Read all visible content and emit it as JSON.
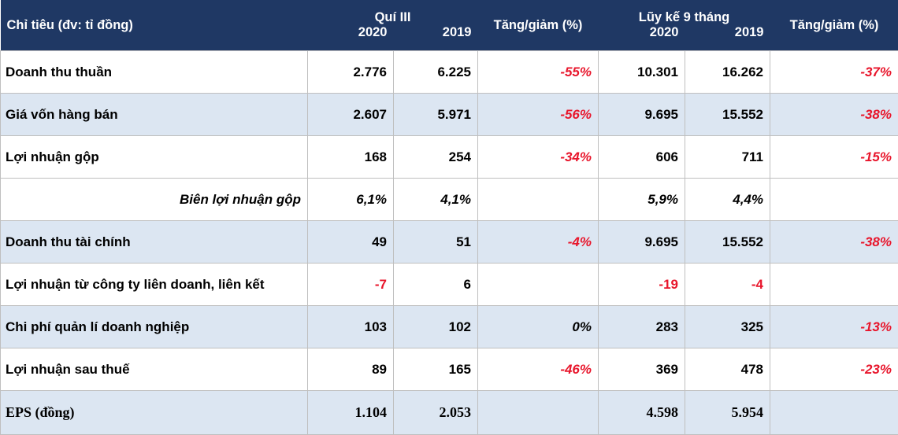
{
  "header": {
    "indicator": "Chỉ tiêu (đv: tỉ đồng)",
    "q3": "Quí III",
    "ytd": "Lũy kế 9 tháng",
    "year_a": "2020",
    "year_b": "2019",
    "change": "Tăng/giảm (%)"
  },
  "rows": [
    {
      "label": "Doanh thu thuần",
      "q2020": "2.776",
      "q2019": "6.225",
      "qchg": "-55%",
      "y2020": "10.301",
      "y2019": "16.262",
      "ychg": "-37%"
    },
    {
      "label": "Giá vốn hàng bán",
      "q2020": "2.607",
      "q2019": "5.971",
      "qchg": "-56%",
      "y2020": "9.695",
      "y2019": "15.552",
      "ychg": "-38%"
    },
    {
      "label": "Lợi nhuận gộp",
      "q2020": "168",
      "q2019": "254",
      "qchg": "-34%",
      "y2020": "606",
      "y2019": "711",
      "ychg": "-15%"
    },
    {
      "label": "Biên lợi nhuận gộp",
      "q2020": "6,1%",
      "q2019": "4,1%",
      "qchg": "",
      "y2020": "5,9%",
      "y2019": "4,4%",
      "ychg": ""
    },
    {
      "label": "Doanh thu tài chính",
      "q2020": "49",
      "q2019": "51",
      "qchg": "-4%",
      "y2020": "9.695",
      "y2019": "15.552",
      "ychg": "-38%"
    },
    {
      "label": "Lợi nhuận từ công ty liên doanh, liên kết",
      "q2020": "-7",
      "q2019": "6",
      "qchg": "",
      "y2020": "-19",
      "y2019": "-4",
      "ychg": ""
    },
    {
      "label": "Chi phí quản lí doanh nghiệp",
      "q2020": "103",
      "q2019": "102",
      "qchg": "0%",
      "y2020": "283",
      "y2019": "325",
      "ychg": "-13%"
    },
    {
      "label": "Lợi nhuận sau thuế",
      "q2020": "89",
      "q2019": "165",
      "qchg": "-46%",
      "y2020": "369",
      "y2019": "478",
      "ychg": "-23%"
    },
    {
      "label": "EPS (đồng)",
      "q2020": "1.104",
      "q2019": "2.053",
      "qchg": "",
      "y2020": "4.598",
      "y2019": "5.954",
      "ychg": ""
    }
  ],
  "colors": {
    "header_bg": "#1f3864",
    "shade_bg": "#dce6f2",
    "negative": "#e8152b"
  }
}
